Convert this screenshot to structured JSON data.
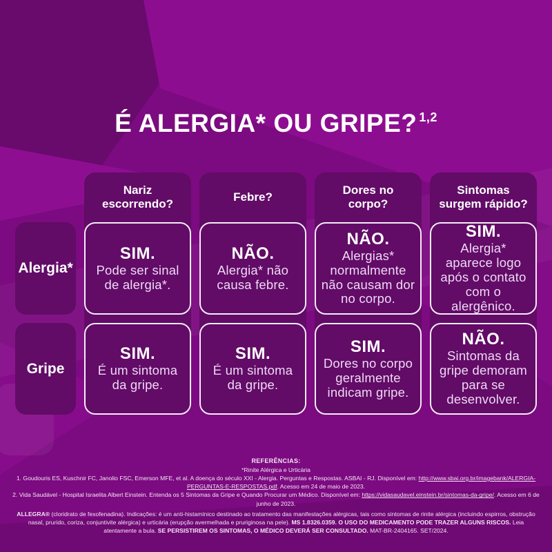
{
  "colors": {
    "background_base": "#7c0a80",
    "background_bright_facet": "#8d0d91",
    "background_dark_facet": "#690a6d",
    "panel_fill": "#620b67",
    "cell_border": "#f6edf7",
    "heading_text": "#ffffff",
    "body_text": "#eed9f4"
  },
  "title": {
    "text": "É ALERGIA* OU GRIPE?",
    "superscript": "1,2"
  },
  "table": {
    "row_labels": [
      "Alergia*",
      "Gripe"
    ],
    "columns": [
      {
        "header": "Nariz escorrendo?",
        "cells": [
          {
            "answer": "SIM.",
            "text": "Pode ser sinal de alergia*."
          },
          {
            "answer": "SIM.",
            "text": "É um sintoma da gripe."
          }
        ]
      },
      {
        "header": "Febre?",
        "cells": [
          {
            "answer": "NÃO.",
            "text": "Alergia* não causa febre."
          },
          {
            "answer": "SIM.",
            "text": "É um sintoma da gripe."
          }
        ]
      },
      {
        "header": "Dores no corpo?",
        "cells": [
          {
            "answer": "NÃO.",
            "text": "Alergias* normalmente não causam dor no corpo."
          },
          {
            "answer": "SIM.",
            "text": "Dores no corpo geralmente indicam gripe."
          }
        ]
      },
      {
        "header": "Sintomas surgem rápido?",
        "cells": [
          {
            "answer": "SIM.",
            "text": "Alergia* aparece logo após o contato com o alergênico."
          },
          {
            "answer": "NÃO.",
            "text": "Sintomas da gripe demoram para se desenvolver."
          }
        ]
      }
    ]
  },
  "footer": {
    "heading": "REFERÊNCIAS:",
    "note": "*Rinite Alérgica e Urticária",
    "ref1_pre": "1. Goudouris ES, Kuschnir FC, Janolio FSC, Emerson MFE, et al. A doença do século XXI - Alergia. Perguntas e Respostas. ASBAI - RJ. Disponível em: ",
    "ref1_link": "http://www.sbai.org.br/imagebank/ALERGIA-PERGUNTAS-E-RESPOSTAS.pdf",
    "ref1_post": ". Acesso em 24 de maio de 2023.",
    "ref2_pre": "2. Vida Saudável - Hospital Israelita Albert Einstein. Entenda os 5 Sintomas da Gripe e Quando Procurar um Médico. Disponível em: ",
    "ref2_link": "https://vidasaudavel.einstein.br/sintomas-da-gripe/",
    "ref2_post": ". Acesso em 6 de junho de 2023.",
    "legal_bold1": "ALLEGRA®",
    "legal_text1": " (cloridrato de fexofenadina). Indicações: é um anti-histamínico destinado ao tratamento das manifestações alérgicas, tais como sintomas de rinite alérgica (incluindo espirros, obstrução nasal, prurido, coriza, conjuntivite alérgica) e urticária (erupção avermelhada e pruriginosa na pele). ",
    "legal_bold2": "MS 1.8326.0359. O USO DO MEDICAMENTO PODE TRAZER ALGUNS RISCOS.",
    "legal_text2": " Leia atentamente a bula. ",
    "legal_bold3": "SE PERSISTIREM OS SINTOMAS, O MÉDICO DEVERÁ SER CONSULTADO.",
    "legal_text3": " MAT-BR-2404165. SET/2024."
  }
}
